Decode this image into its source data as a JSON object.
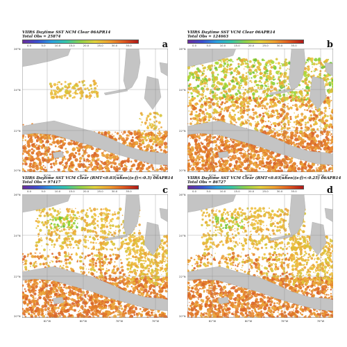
{
  "colorbar": {
    "ticks": [
      "0.0",
      "5.0",
      "10.0",
      "15.0",
      "20.0",
      "25.0",
      "30.0",
      "35.0"
    ],
    "colors": [
      "#6a2c9c",
      "#3a4fd0",
      "#2aa0e0",
      "#35c6a8",
      "#8fd24a",
      "#e2d23c",
      "#f0a030",
      "#e05a20",
      "#b01818"
    ]
  },
  "axes": {
    "lat_labels": [
      "26°N",
      "24°N",
      "22°N",
      "20°N"
    ],
    "lon_labels": [
      "82°W",
      "80°W",
      "78°W",
      "76°W"
    ]
  },
  "panels": [
    {
      "id": "a",
      "label": "a",
      "title": "VIIRS Daytime SST NCM Clear 06APR14",
      "total": "Total Obs = 25874"
    },
    {
      "id": "b",
      "label": "b",
      "title": "VIIRS Daytime SST VCM Clear 06APR14",
      "total": "Total Obs = 124663"
    },
    {
      "id": "c",
      "label": "c",
      "title": "VIIRS Daytime SST VCM Clear (RMT<0.03|when|(s-f)<-0.5) 06APR14",
      "total": "Total Obs = 97417"
    },
    {
      "id": "d",
      "label": "d",
      "title": "VIIRS Daytime SST VCM Clear (RMT<0.03|when|(s-f)<-0.25) 06APR14",
      "total": "Total Obs = 86727"
    }
  ],
  "colors": {
    "land": "#c4c4c4",
    "grid": "#8a8a8a",
    "sst_warm": "#e07a2a",
    "sst_mid": "#eaa53a",
    "sst_cool": "#d8c43a",
    "sst_cold": "#8ccf3c"
  }
}
